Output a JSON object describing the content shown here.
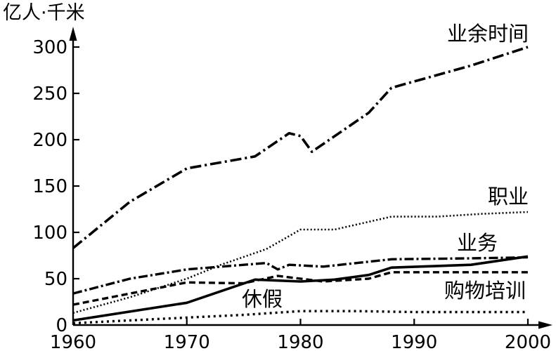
{
  "chart_data": {
    "type": "line",
    "ylabel": "亿人·千米",
    "xlim": [
      1960,
      2000
    ],
    "ylim": [
      0,
      300
    ],
    "x_ticks": [
      1960,
      1970,
      1980,
      1990,
      2000
    ],
    "y_ticks": [
      0,
      50,
      100,
      150,
      200,
      250,
      300
    ],
    "x_tick_labels": [
      "1960",
      "1970",
      "1980",
      "1990",
      "2000"
    ],
    "y_tick_labels": [
      "0",
      "50",
      "100",
      "150",
      "200",
      "250",
      "300"
    ],
    "grid": false,
    "series": [
      {
        "name": "业余时间",
        "style": "dashdot-long",
        "x": [
          1960,
          1965,
          1970,
          1976,
          1979,
          1980,
          1981,
          1986,
          1988,
          1995,
          2000
        ],
        "y": [
          83,
          133,
          169,
          182,
          207,
          204,
          187,
          229,
          256,
          280,
          300
        ]
      },
      {
        "name": "职业",
        "style": "dotted",
        "x": [
          1960,
          1965,
          1970,
          1973,
          1977,
          1980,
          1983,
          1988,
          1992,
          1996,
          2000
        ],
        "y": [
          13,
          30,
          50,
          65,
          82,
          103,
          103,
          117,
          117,
          120,
          122
        ]
      },
      {
        "name": "业务",
        "style": "dashdot",
        "x": [
          1960,
          1965,
          1970,
          1977,
          1978,
          1979,
          1982,
          1988,
          1995,
          2000
        ],
        "y": [
          34,
          50,
          60,
          67,
          60,
          65,
          63,
          71,
          72,
          73
        ]
      },
      {
        "name": "购物培训",
        "style": "dashed",
        "x": [
          1960,
          1970,
          1975,
          1978,
          1982,
          1986,
          1988,
          1995,
          2000
        ],
        "y": [
          22,
          46,
          45,
          53,
          47,
          50,
          57,
          57,
          57
        ]
      },
      {
        "name": "休假",
        "style": "solid",
        "x": [
          1960,
          1970,
          1976,
          1980,
          1983,
          1986,
          1988,
          1995,
          2000
        ],
        "y": [
          5,
          24,
          49,
          47,
          49,
          54,
          62,
          65,
          74
        ]
      },
      {
        "name": "",
        "style": "dotted-thick",
        "x": [
          1960,
          1965,
          1970,
          1975,
          1980,
          1985,
          1990,
          1995,
          2000
        ],
        "y": [
          2,
          5,
          8,
          11,
          15,
          15,
          14,
          14,
          14
        ]
      }
    ],
    "annotations": [
      {
        "text": "业余时间"
      },
      {
        "text": "职业"
      },
      {
        "text": "业务"
      },
      {
        "text": "购物培训"
      },
      {
        "text": "休假"
      }
    ]
  }
}
